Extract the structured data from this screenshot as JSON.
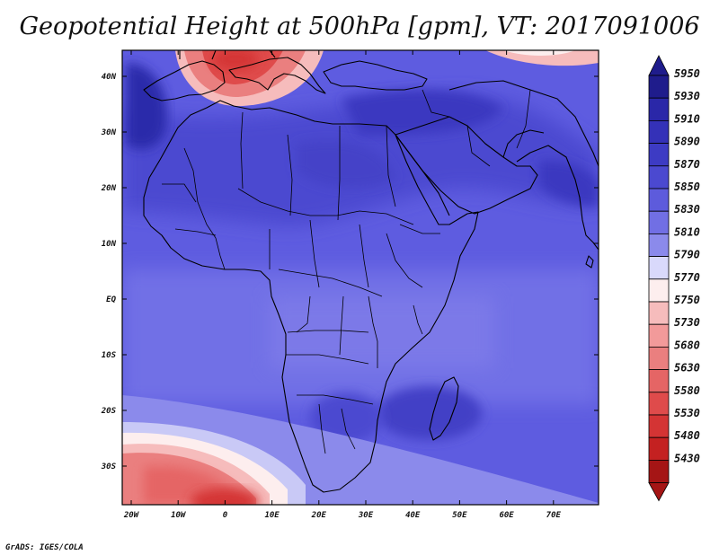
{
  "title": "Geopotential Height at 500hPa [gpm], VT: 2017091006",
  "credit": "GrADS: IGES/COLA",
  "map": {
    "lat_labels": [
      "40N",
      "30N",
      "20N",
      "10N",
      "EQ",
      "10S",
      "20S",
      "30S"
    ],
    "lon_labels": [
      "20W",
      "10W",
      "0",
      "10E",
      "20E",
      "30E",
      "40E",
      "50E",
      "60E",
      "70E"
    ]
  },
  "colorbar": {
    "levels": [
      "5950",
      "5930",
      "5910",
      "5890",
      "5870",
      "5850",
      "5830",
      "5810",
      "5790",
      "5770",
      "5750",
      "5730",
      "5680",
      "5630",
      "5580",
      "5530",
      "5480",
      "5430"
    ],
    "colors": [
      "#1f1c8c",
      "#2a27a8",
      "#3431b8",
      "#3d3bc4",
      "#4b49d0",
      "#5d5bdc",
      "#716fe4",
      "#8b8aeb",
      "#d9d9fb",
      "#fdeeee",
      "#f6bcbc",
      "#f29a9a",
      "#ea7f7f",
      "#e56565",
      "#df4b4b",
      "#d43434",
      "#c42121",
      "#a51515"
    ]
  }
}
